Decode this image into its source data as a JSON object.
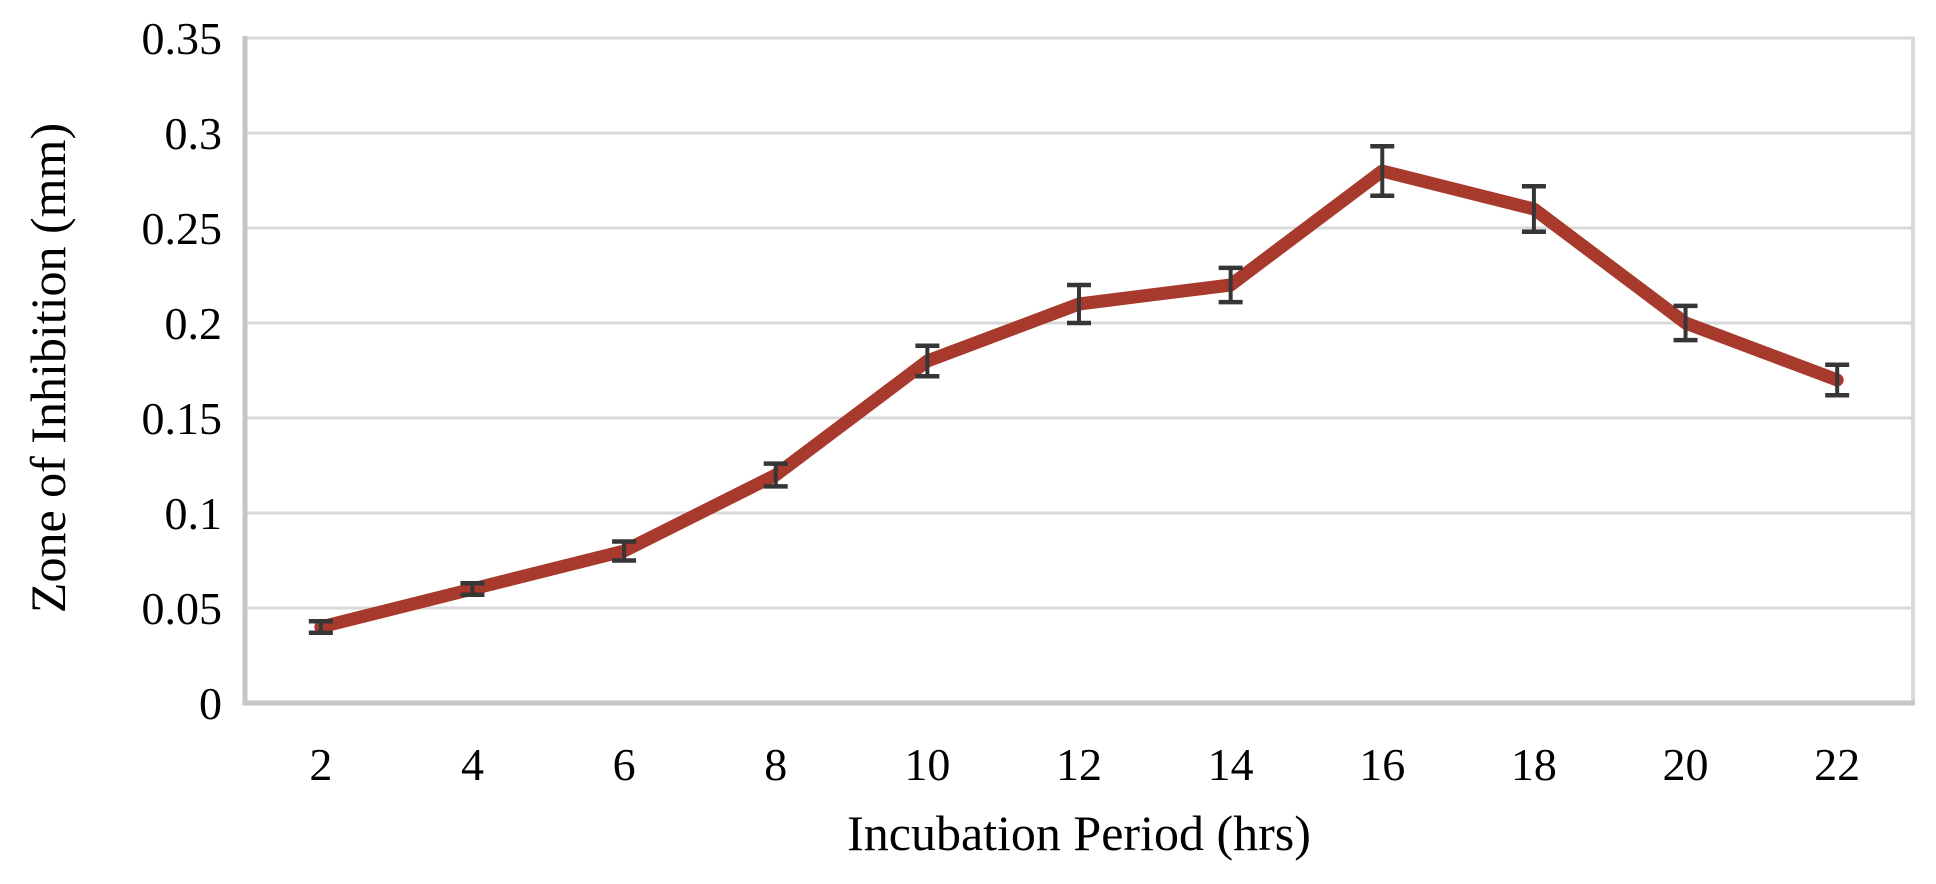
{
  "chart_data": {
    "type": "line",
    "xlabel": "Incubation Period (hrs)",
    "ylabel": "Zone of Inhibition (mm)",
    "x_categories": [
      "2",
      "4",
      "6",
      "8",
      "10",
      "12",
      "14",
      "16",
      "18",
      "20",
      "22"
    ],
    "series": [
      {
        "name": "Zone of Inhibition",
        "values": [
          0.04,
          0.06,
          0.08,
          0.12,
          0.18,
          0.21,
          0.22,
          0.28,
          0.26,
          0.2,
          0.17
        ],
        "error_bars": [
          0.003,
          0.003,
          0.005,
          0.006,
          0.008,
          0.01,
          0.009,
          0.013,
          0.012,
          0.009,
          0.008
        ],
        "color": "#A8392D"
      }
    ],
    "ylim": [
      0,
      0.35
    ],
    "ytick_values": [
      0,
      0.05,
      0.1,
      0.15,
      0.2,
      0.25,
      0.3,
      0.35
    ],
    "ytick_labels": [
      "0",
      "0.05",
      "0.1",
      "0.15",
      "0.2",
      "0.25",
      "0.3",
      "0.35"
    ],
    "grid": "horizontal",
    "legend_position": "none",
    "colors": {
      "grid": "#D9D9D9",
      "axis": "#C6C6C6",
      "error_bar": "#363636",
      "text": "#000000",
      "background": "#FFFFFF"
    }
  }
}
